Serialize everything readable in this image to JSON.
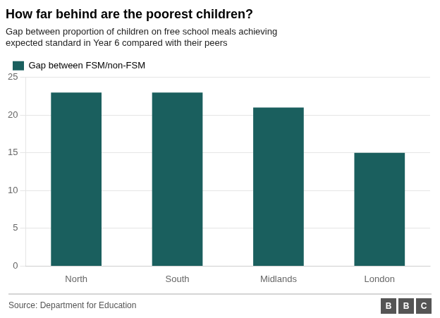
{
  "chart_data": {
    "type": "bar",
    "title": "How far behind are the poorest children?",
    "subtitle": "Gap between proportion of children on free school meals achieving\nexpected standard in Year 6 compared with their peers",
    "categories": [
      "North",
      "South",
      "Midlands",
      "London"
    ],
    "series": [
      {
        "name": "Gap between FSM/non-FSM",
        "color": "#1a5f5e",
        "values": [
          23,
          23,
          21,
          15
        ]
      }
    ],
    "ylim": [
      0,
      25
    ],
    "yticks": [
      0,
      5,
      10,
      15,
      20,
      25
    ],
    "grid": true,
    "legend": "upper left",
    "annotations": [
      "Source: Department for Education",
      "B",
      "B",
      "C"
    ]
  }
}
